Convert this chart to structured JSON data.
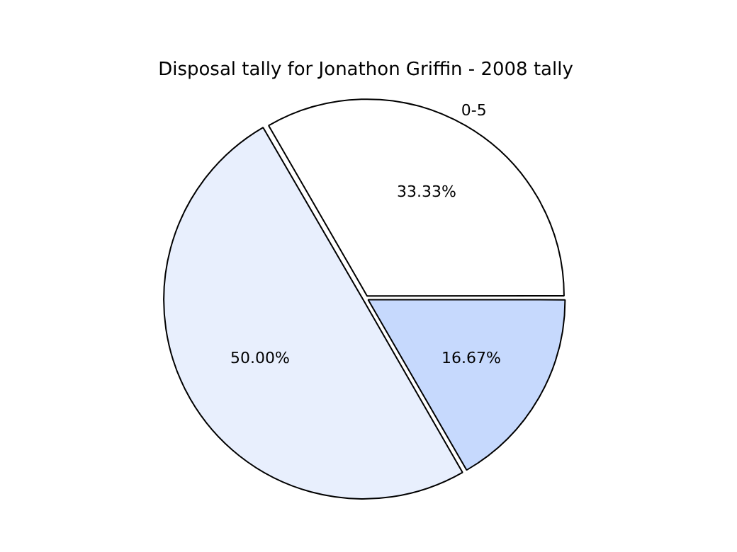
{
  "chart_data": {
    "type": "pie",
    "title": "Disposal tally for Jonathon Griffin - 2008 tally",
    "categories": [
      "0-5",
      null,
      null
    ],
    "values": [
      33.33,
      16.67,
      50
    ],
    "colors": [
      "#ffffff",
      "#c6d9fd",
      "#e8effd"
    ],
    "value_labels": [
      "33.33%",
      "16.67%",
      "50.00%"
    ],
    "legend": false
  }
}
